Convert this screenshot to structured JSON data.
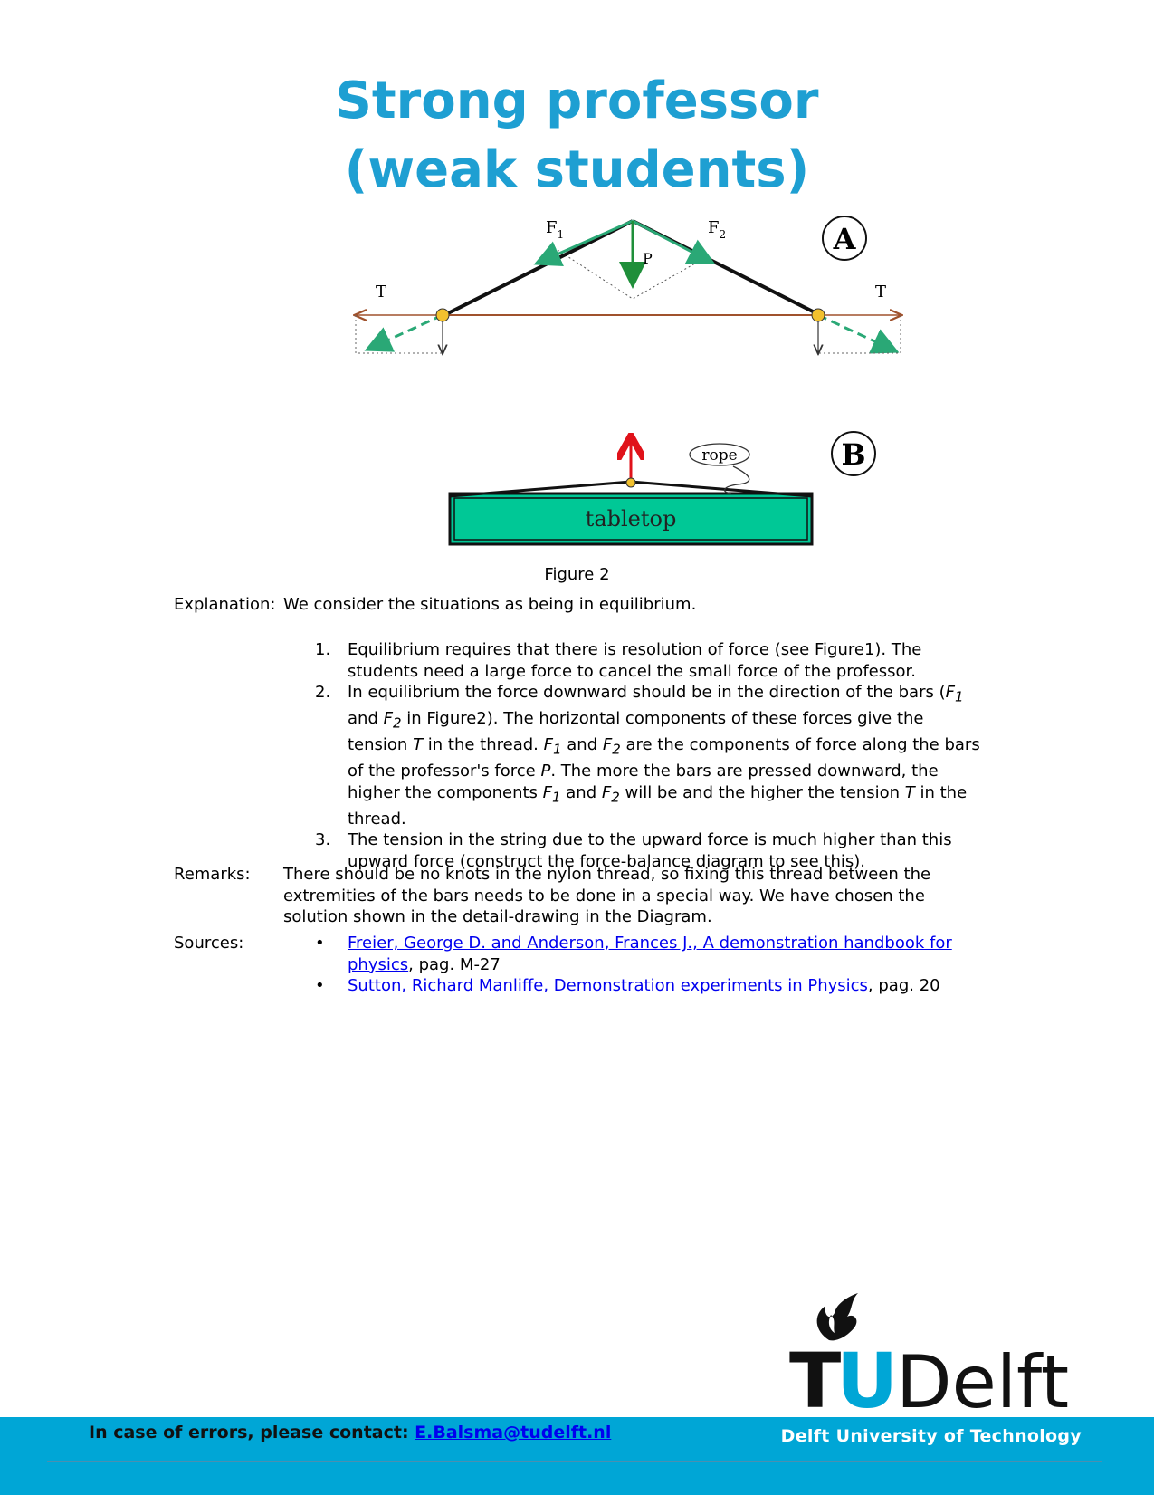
{
  "title": {
    "line1": "Strong professor",
    "line2": "(weak students)"
  },
  "figure": {
    "labels": {
      "F1": "F",
      "F1_sub": "1",
      "F2": "F",
      "F2_sub": "2",
      "P": "P",
      "T_left": "T",
      "T_right": "T",
      "A": "A",
      "B": "B",
      "rope": "rope",
      "tabletop": "tabletop"
    },
    "colors": {
      "green_arrow": "#2aa876",
      "dark_green_arrow": "#1f8f3a",
      "brown_thread": "#a0522d",
      "tabletop": "#00c896",
      "red_arrow": "#e0121a",
      "joint": "#f2c12e"
    },
    "caption": "Figure 2"
  },
  "explanation": {
    "label": "Explanation:",
    "intro": "We consider the situations as being in equilibrium.",
    "items": [
      {
        "num": "1.",
        "text": "Equilibrium requires that there is resolution of force (see Figure1). The students need a large force to cancel the small force of the professor."
      },
      {
        "num": "2.",
        "p1": "In equilibrium the force downward should be in the direction of the bars (",
        "f1": "F",
        "f1s": "1",
        "p2": " and ",
        "f2": "F",
        "f2s": "2",
        "p3": " in Figure2). The horizontal components of these forces give the tension ",
        "t1": "T",
        "p4": " in the thread. ",
        "f1b": "F",
        "f1bs": "1",
        "p5": " and ",
        "f2b": "F",
        "f2bs": "2",
        "p6": " are the components of force along the bars of the professor's force ",
        "pp": "P",
        "p7": ". The more the bars are pressed downward, the higher the components ",
        "f1c": "F",
        "f1cs": "1",
        "p8": " and ",
        "f2c": "F",
        "f2cs": "2",
        "p9": " will be and the higher the tension ",
        "t2": "T",
        "p10": " in the thread."
      },
      {
        "num": "3.",
        "text": "The tension in the string due to the upward force is much higher than this upward force (construct the force-balance diagram to see this)."
      }
    ]
  },
  "remarks": {
    "label": "Remarks:",
    "text": "There should be no knots in the nylon thread, so fixing this thread between the extremities of the bars needs to be done in a special way. We have chosen the solution shown in the detail-drawing in the Diagram."
  },
  "sources": {
    "label": "Sources:",
    "bullet": "•",
    "items": [
      {
        "link": "Freier, George D. and Anderson, Frances J., A demonstration handbook for physics",
        "suffix": ", pag. M-27"
      },
      {
        "link": "Sutton, Richard Manliffe, Demonstration experiments in Physics",
        "suffix": ", pag. 20"
      }
    ]
  },
  "logo": {
    "letters_tu": "TU",
    "letters_delft": "Delft",
    "colors": {
      "t": "#111111",
      "u": "#00a6d6",
      "delft": "#111111"
    }
  },
  "footer": {
    "contact_label": "In case of errors, please contact: ",
    "contact_email": "E.Balsma@tudelft.nl",
    "tagline": "Delft University of Technology",
    "background": "#00a6d6"
  }
}
